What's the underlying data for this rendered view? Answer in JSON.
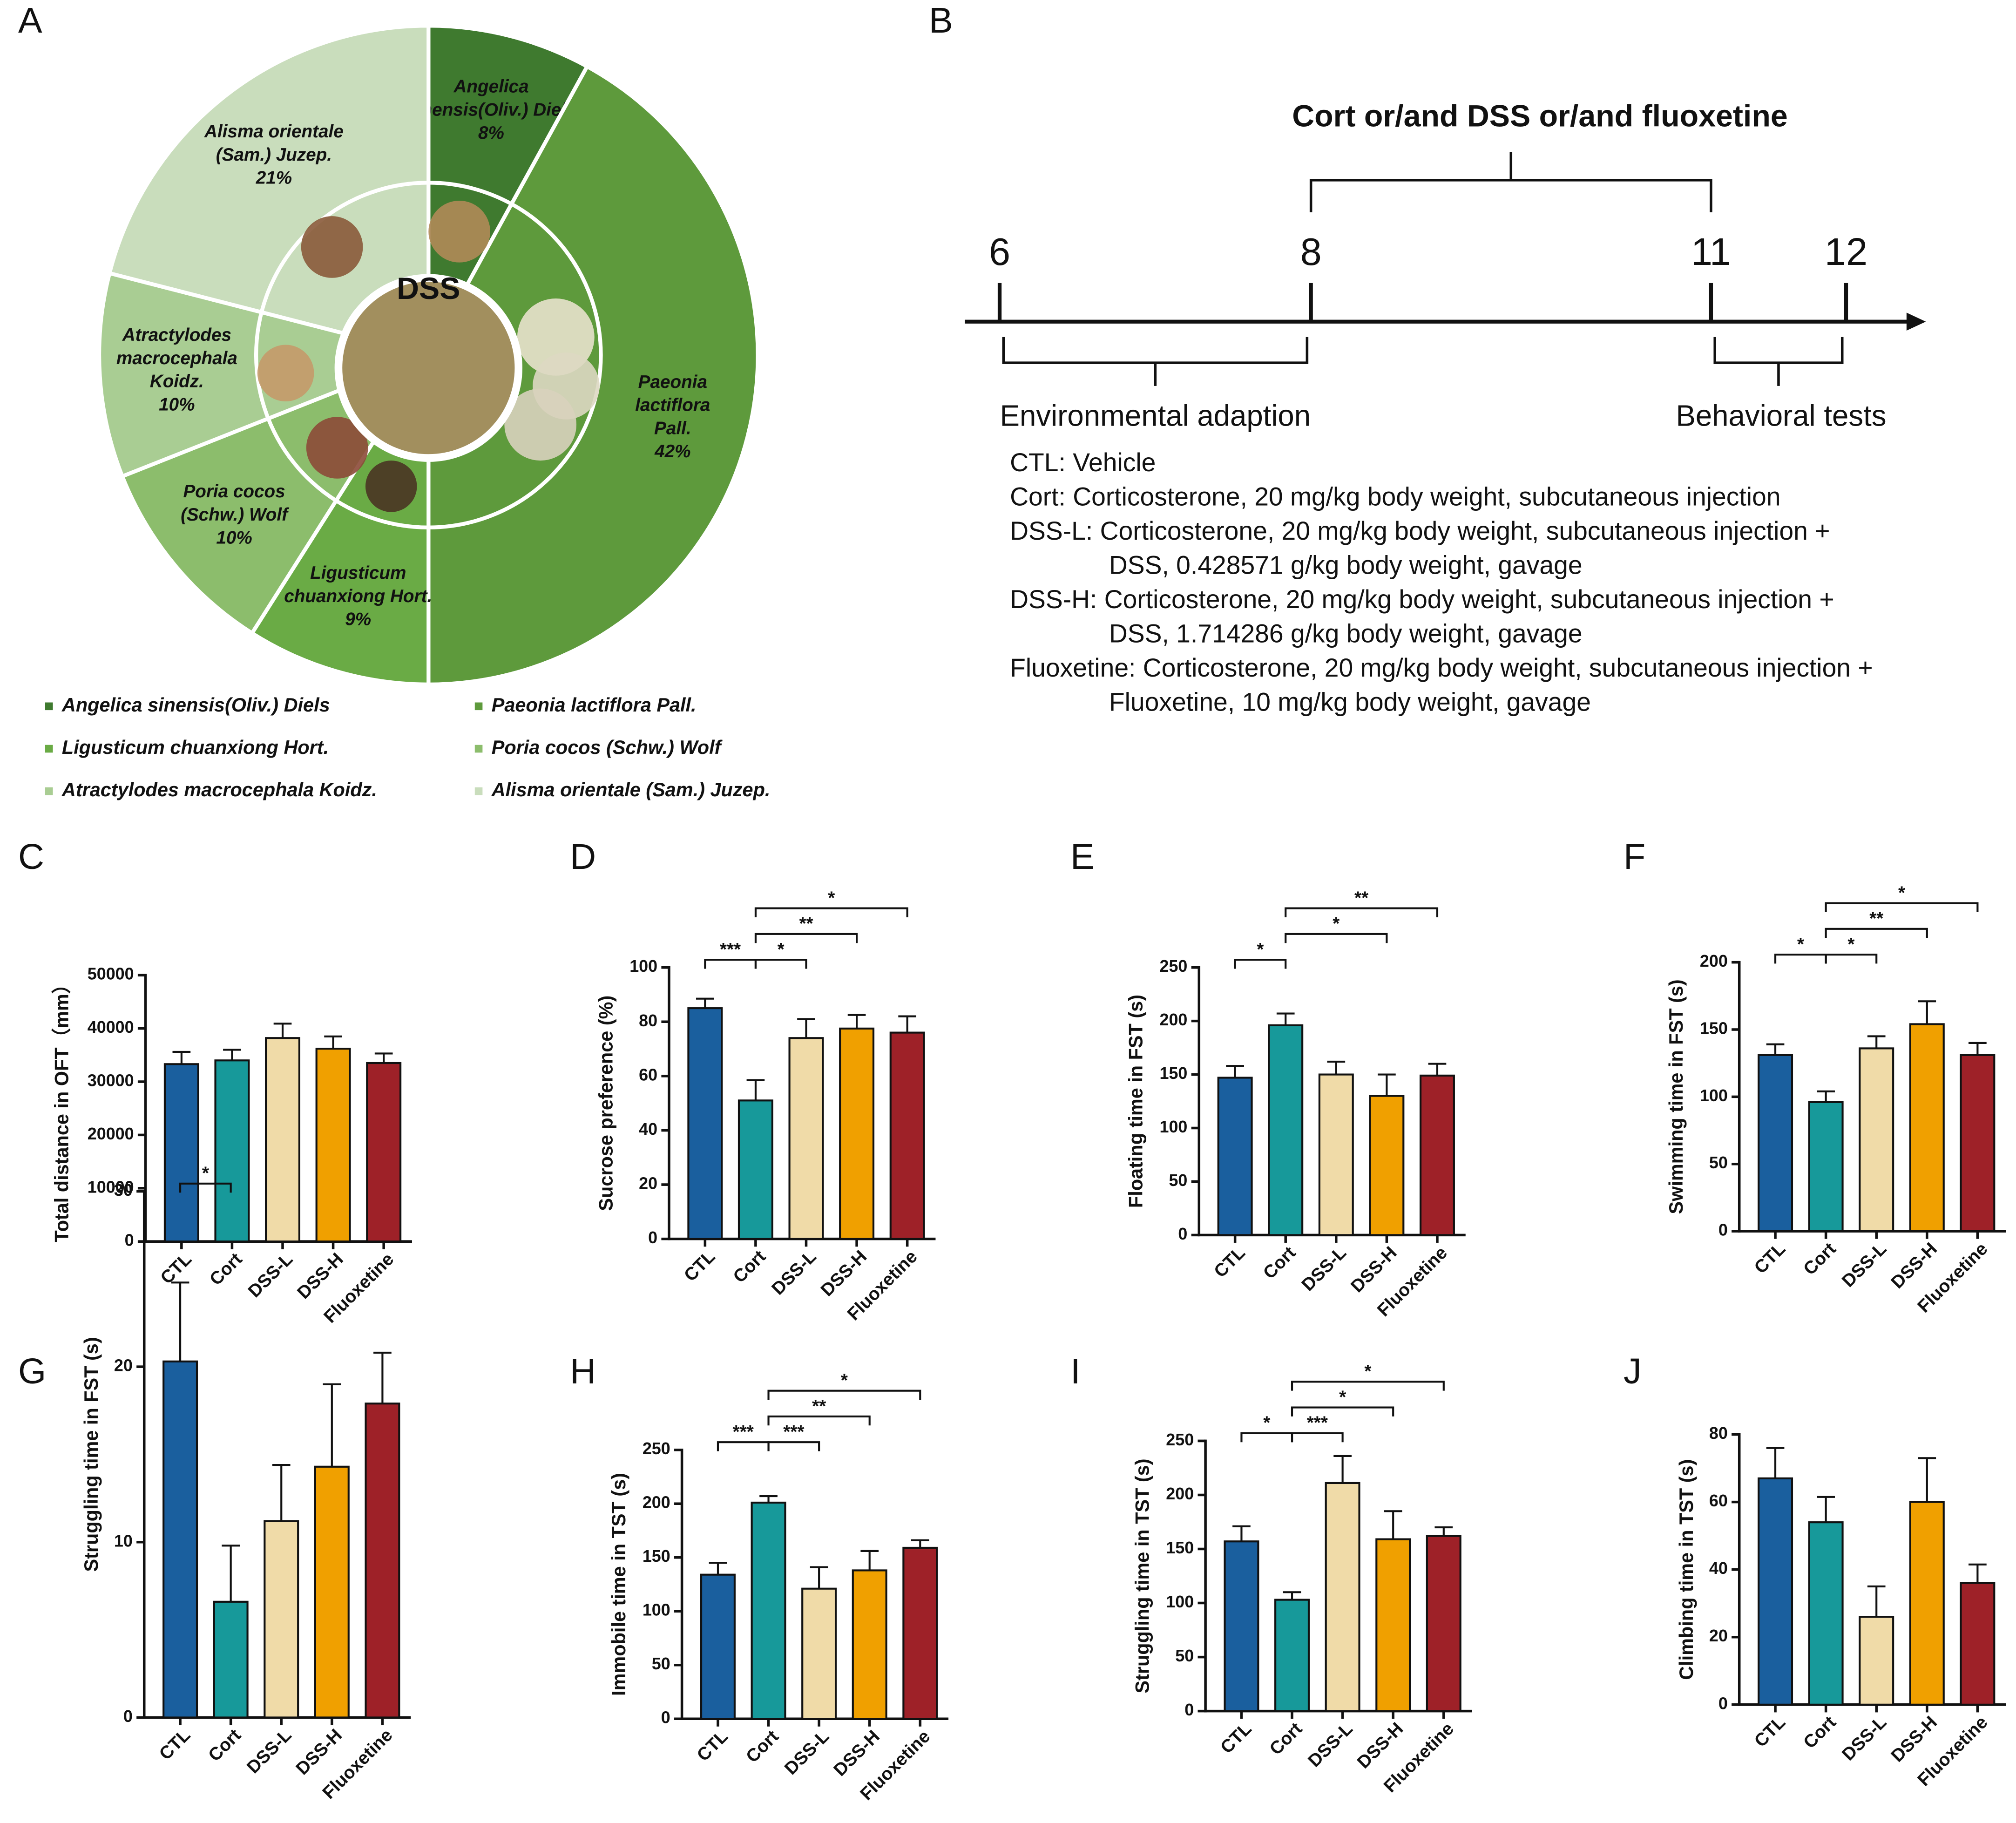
{
  "chart_data": [
    {
      "type": "pie",
      "panel": "A",
      "center_label": "DSS",
      "categories": [
        "Angelica sinensis(Oliv.) Diels",
        "Paeonia lactiflora Pall.",
        "Ligusticum chuanxiong Hort.",
        "Poria cocos (Schw.) Wolf",
        "Atractylodes macrocephala Koidz.",
        "Alisma orientale (Sam.) Juzep."
      ],
      "slice_labels": [
        [
          "Angelica",
          "sinensis(Oliv.) Diels"
        ],
        [
          "Paeonia",
          "lactiflora",
          "Pall."
        ],
        [
          "Ligusticum",
          "chuanxiong Hort."
        ],
        [
          "Poria cocos",
          "(Schw.) Wolf"
        ],
        [
          "Atractylodes",
          "macrocephala",
          "Koidz."
        ],
        [
          "Alisma orientale",
          "(Sam.) Juzep."
        ]
      ],
      "values": [
        8,
        42,
        9,
        10,
        10,
        21
      ],
      "value_labels": [
        "8%",
        "42%",
        "9%",
        "10%",
        "10%",
        "21%"
      ],
      "colors": [
        "#3f7a2f",
        "#5e9a3c",
        "#6aab45",
        "#8cbd6c",
        "#a9cd93",
        "#c9ddbc"
      ]
    },
    {
      "type": "bar",
      "panel": "C",
      "ylabel": "Total distance in OFT（mm）",
      "categories": [
        "CTL",
        "Cort",
        "DSS-L",
        "DSS-H",
        "Fluoxetine"
      ],
      "values": [
        33300,
        34000,
        38200,
        36200,
        33500
      ],
      "errors": [
        2300,
        2000,
        2700,
        2300,
        1800
      ],
      "colors": [
        "#1a5f9e",
        "#17999a",
        "#f0dba8",
        "#f0a000",
        "#9e2128"
      ],
      "ylim": [
        0,
        50000
      ],
      "yticks": [
        0,
        10000,
        20000,
        30000,
        40000,
        50000
      ],
      "comparisons": []
    },
    {
      "type": "bar",
      "panel": "D",
      "ylabel": "Sucrose preference (%)",
      "categories": [
        "CTL",
        "Cort",
        "DSS-L",
        "DSS-H",
        "Fluoxetine"
      ],
      "values": [
        85,
        51,
        74,
        77.5,
        76
      ],
      "errors": [
        3.5,
        7.5,
        7,
        5,
        6
      ],
      "colors": [
        "#1a5f9e",
        "#17999a",
        "#f0dba8",
        "#f0a000",
        "#9e2128"
      ],
      "ylim": [
        0,
        100
      ],
      "yticks": [
        0,
        20,
        40,
        60,
        80,
        100
      ],
      "comparisons": [
        {
          "groups": [
            "CTL",
            "Cort"
          ],
          "label": "***"
        },
        {
          "groups": [
            "Cort",
            "DSS-L"
          ],
          "label": "*"
        },
        {
          "groups": [
            "Cort",
            "DSS-H"
          ],
          "label": "**"
        },
        {
          "groups": [
            "Cort",
            "Fluoxetine"
          ],
          "label": "*"
        }
      ]
    },
    {
      "type": "bar",
      "panel": "E",
      "ylabel": "Floating time in FST (s)",
      "categories": [
        "CTL",
        "Cort",
        "DSS-L",
        "DSS-H",
        "Fluoxetine"
      ],
      "values": [
        147,
        196,
        150,
        130,
        149
      ],
      "errors": [
        11,
        11,
        12,
        20,
        11
      ],
      "colors": [
        "#1a5f9e",
        "#17999a",
        "#f0dba8",
        "#f0a000",
        "#9e2128"
      ],
      "ylim": [
        0,
        250
      ],
      "yticks": [
        0,
        50,
        100,
        150,
        200,
        250
      ],
      "comparisons": [
        {
          "groups": [
            "CTL",
            "Cort"
          ],
          "label": "*"
        },
        {
          "groups": [
            "Cort",
            "DSS-H"
          ],
          "label": "*"
        },
        {
          "groups": [
            "Cort",
            "Fluoxetine"
          ],
          "label": "**"
        }
      ]
    },
    {
      "type": "bar",
      "panel": "F",
      "ylabel": "Swimming time in FST (s)",
      "categories": [
        "CTL",
        "Cort",
        "DSS-L",
        "DSS-H",
        "Fluoxetine"
      ],
      "values": [
        131,
        96,
        136,
        154,
        131
      ],
      "errors": [
        8,
        8,
        9,
        17,
        9
      ],
      "colors": [
        "#1a5f9e",
        "#17999a",
        "#f0dba8",
        "#f0a000",
        "#9e2128"
      ],
      "ylim": [
        0,
        200
      ],
      "yticks": [
        0,
        50,
        100,
        150,
        200
      ],
      "comparisons": [
        {
          "groups": [
            "CTL",
            "Cort"
          ],
          "label": "*"
        },
        {
          "groups": [
            "Cort",
            "DSS-L"
          ],
          "label": "*"
        },
        {
          "groups": [
            "Cort",
            "DSS-H"
          ],
          "label": "**"
        },
        {
          "groups": [
            "Cort",
            "Fluoxetine"
          ],
          "label": "*"
        }
      ]
    },
    {
      "type": "bar",
      "panel": "G",
      "ylabel": "Struggling time in FST (s)",
      "categories": [
        "CTL",
        "Cort",
        "DSS-L",
        "DSS-H",
        "Fluoxetine"
      ],
      "values": [
        20.3,
        6.6,
        11.2,
        14.3,
        17.9
      ],
      "errors": [
        4.5,
        3.2,
        3.2,
        4.7,
        2.9
      ],
      "colors": [
        "#1a5f9e",
        "#17999a",
        "#f0dba8",
        "#f0a000",
        "#9e2128"
      ],
      "ylim": [
        0,
        30
      ],
      "yticks": [
        0,
        10,
        20,
        30
      ],
      "comparisons": [
        {
          "groups": [
            "CTL",
            "Cort"
          ],
          "label": "*"
        }
      ]
    },
    {
      "type": "bar",
      "panel": "H",
      "ylabel": "Immobile time in TST (s)",
      "categories": [
        "CTL",
        "Cort",
        "DSS-L",
        "DSS-H",
        "Fluoxetine"
      ],
      "values": [
        134,
        201,
        121,
        138,
        159
      ],
      "errors": [
        11,
        6,
        20,
        18,
        7
      ],
      "colors": [
        "#1a5f9e",
        "#17999a",
        "#f0dba8",
        "#f0a000",
        "#9e2128"
      ],
      "ylim": [
        0,
        250
      ],
      "yticks": [
        0,
        50,
        100,
        150,
        200,
        250
      ],
      "comparisons": [
        {
          "groups": [
            "CTL",
            "Cort"
          ],
          "label": "***"
        },
        {
          "groups": [
            "Cort",
            "DSS-L"
          ],
          "label": "***"
        },
        {
          "groups": [
            "Cort",
            "DSS-H"
          ],
          "label": "**"
        },
        {
          "groups": [
            "Cort",
            "Fluoxetine"
          ],
          "label": "*"
        }
      ]
    },
    {
      "type": "bar",
      "panel": "I",
      "ylabel": "Struggling time in TST (s)",
      "categories": [
        "CTL",
        "Cort",
        "DSS-L",
        "DSS-H",
        "Fluoxetine"
      ],
      "values": [
        157,
        103,
        211,
        159,
        162
      ],
      "errors": [
        14,
        7,
        25,
        26,
        8
      ],
      "colors": [
        "#1a5f9e",
        "#17999a",
        "#f0dba8",
        "#f0a000",
        "#9e2128"
      ],
      "ylim": [
        0,
        250
      ],
      "yticks": [
        0,
        50,
        100,
        150,
        200,
        250
      ],
      "comparisons": [
        {
          "groups": [
            "CTL",
            "Cort"
          ],
          "label": "*"
        },
        {
          "groups": [
            "Cort",
            "DSS-L"
          ],
          "label": "***"
        },
        {
          "groups": [
            "Cort",
            "DSS-H"
          ],
          "label": "*"
        },
        {
          "groups": [
            "Cort",
            "Fluoxetine"
          ],
          "label": "*"
        }
      ]
    },
    {
      "type": "bar",
      "panel": "J",
      "ylabel": "Climbing time in TST (s)",
      "categories": [
        "CTL",
        "Cort",
        "DSS-L",
        "DSS-H",
        "Fluoxetine"
      ],
      "values": [
        67,
        54,
        26,
        60,
        36
      ],
      "errors": [
        9,
        7.5,
        9,
        13,
        5.5
      ],
      "colors": [
        "#1a5f9e",
        "#17999a",
        "#f0dba8",
        "#f0a000",
        "#9e2128"
      ],
      "ylim": [
        0,
        80
      ],
      "yticks": [
        0,
        20,
        40,
        60,
        80
      ],
      "comparisons": []
    }
  ],
  "timeline": {
    "panel": "B",
    "title": "Cort or/and DSS or/and fluoxetine",
    "weeks": [
      6,
      8,
      11,
      12
    ],
    "phases": [
      "Environmental adaption",
      "Behavioral tests"
    ],
    "groups": [
      {
        "lines": [
          "CTL: Vehicle"
        ]
      },
      {
        "lines": [
          "Cort: Corticosterone, 20 mg/kg body weight, subcutaneous injection"
        ]
      },
      {
        "lines": [
          "DSS-L: Corticosterone, 20 mg/kg body weight, subcutaneous injection +",
          "DSS, 0.428571 g/kg body weight, gavage"
        ]
      },
      {
        "lines": [
          "DSS-H: Corticosterone, 20 mg/kg body weight, subcutaneous injection +",
          "DSS, 1.714286 g/kg body weight, gavage"
        ]
      },
      {
        "lines": [
          "Fluoxetine: Corticosterone, 20 mg/kg body weight, subcutaneous injection +",
          "Fluoxetine, 10 mg/kg body weight, gavage"
        ]
      }
    ]
  }
}
